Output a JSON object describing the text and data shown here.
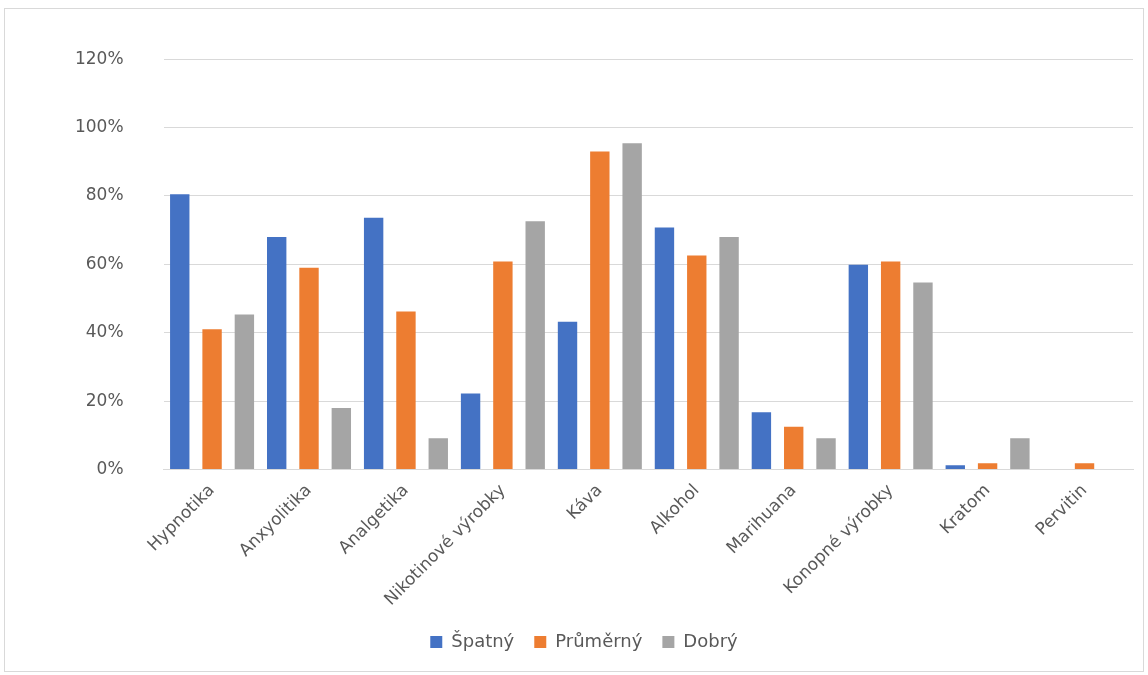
{
  "chart_data": {
    "type": "bar",
    "categories": [
      "Hypnotika",
      "Anxyolitika",
      "Analgetika",
      "Nikotinové výrobky",
      "Káva",
      "Alkohol",
      "Marihuana",
      "Konopné výrobky",
      "Kratom",
      "Pervitin"
    ],
    "series": [
      {
        "name": "Špatný",
        "color": "#4472c4",
        "values": [
          80.5,
          68,
          73.6,
          22.2,
          43.2,
          70.8,
          16.7,
          59.9,
          1.2,
          0
        ]
      },
      {
        "name": "Průměrný",
        "color": "#ed7d31",
        "values": [
          41,
          59,
          46.2,
          60.8,
          93,
          62.6,
          12.5,
          60.8,
          1.8,
          1.8
        ]
      },
      {
        "name": "Dobrý",
        "color": "#a5a5a5",
        "values": [
          45.3,
          18,
          9.1,
          72.6,
          95.4,
          68,
          9.1,
          54.7,
          9.1,
          0
        ]
      }
    ],
    "ylim": [
      0,
      120
    ],
    "yticks": [
      {
        "value": 0,
        "label": "0%"
      },
      {
        "value": 20,
        "label": "20%"
      },
      {
        "value": 40,
        "label": "40%"
      },
      {
        "value": 60,
        "label": "60%"
      },
      {
        "value": 80,
        "label": "80%"
      },
      {
        "value": 100,
        "label": "100%"
      },
      {
        "value": 120,
        "label": "120%"
      }
    ],
    "grid": "y",
    "legend": "bottom"
  }
}
